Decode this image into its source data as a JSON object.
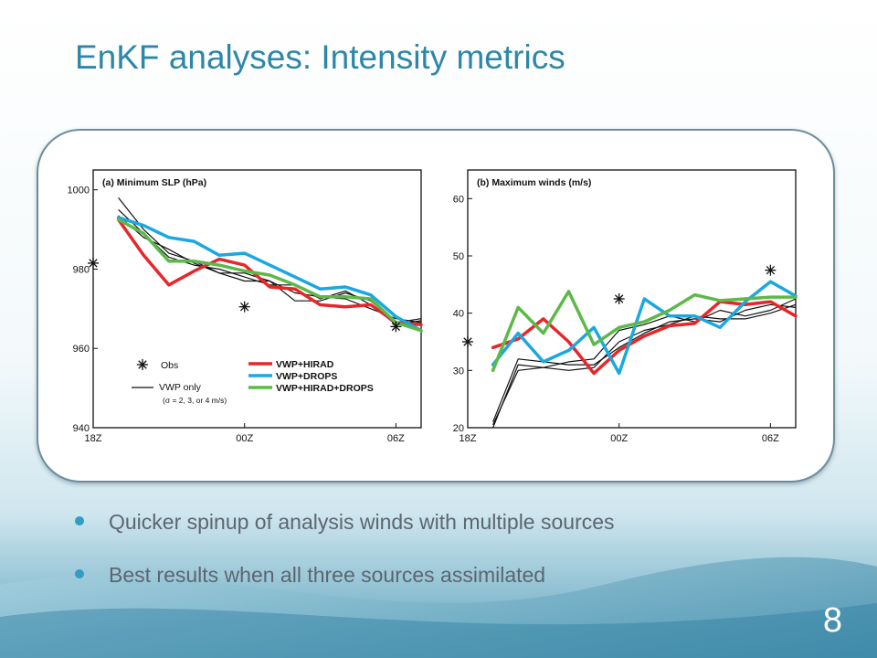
{
  "slide": {
    "title": "EnKF analyses: Intensity metrics",
    "bullets": [
      "Quicker spinup of analysis winds with multiple sources",
      "Best results when all three sources assimilated"
    ],
    "page_number": "8",
    "colors": {
      "title": "#2e87a8",
      "bullet": "#2f9dc4",
      "text": "#5b6670"
    }
  },
  "chart_data": [
    {
      "type": "line",
      "title": "(a) Minimum SLP (hPa)",
      "xlabel": "",
      "ylabel": "",
      "x_ticks": [
        {
          "x": 0,
          "label": "18Z"
        },
        {
          "x": 6,
          "label": "00Z"
        },
        {
          "x": 12,
          "label": "06Z"
        }
      ],
      "xlim": [
        0,
        13
      ],
      "ylim": [
        940,
        1005
      ],
      "y_ticks": [
        940,
        960,
        980,
        1000
      ],
      "legend": {
        "obs_label": "Obs",
        "vwp_label": "VWP only",
        "vwp_note": "(σ = 2, 3, or 4 m/s)",
        "position": "bottom"
      },
      "series": [
        {
          "name": "VWP+HIRAD",
          "color": "#e8262a",
          "width": 3.5,
          "x": [
            1,
            2,
            3,
            4,
            5,
            6,
            7,
            8,
            9,
            10,
            11,
            12,
            13
          ],
          "values": [
            992.5,
            983.5,
            976,
            979.5,
            982.5,
            981,
            975.5,
            975,
            971,
            970.5,
            971,
            966.5,
            966
          ]
        },
        {
          "name": "VWP+DROPS",
          "color": "#1ba8e0",
          "width": 3.5,
          "x": [
            1,
            2,
            3,
            4,
            5,
            6,
            7,
            8,
            9,
            10,
            11,
            12,
            13
          ],
          "values": [
            993,
            991,
            988,
            987,
            983.5,
            984,
            981,
            978,
            975,
            975.5,
            973.5,
            968,
            964.5
          ]
        },
        {
          "name": "VWP+HIRAD+DROPS",
          "color": "#5cb949",
          "width": 3.5,
          "x": [
            1,
            2,
            3,
            4,
            5,
            6,
            7,
            8,
            9,
            10,
            11,
            12,
            13
          ],
          "values": [
            992.5,
            989,
            982,
            982,
            981,
            979.5,
            978.5,
            976,
            973,
            973,
            972.5,
            966.5,
            964.5
          ]
        }
      ],
      "vwp_runs": [
        {
          "x": [
            1,
            2,
            3,
            4,
            5,
            6,
            7,
            8,
            9,
            10,
            11,
            12,
            13
          ],
          "values": [
            998,
            990,
            984,
            982,
            979,
            977,
            977,
            972,
            972,
            974,
            972,
            966.5,
            967.5
          ]
        },
        {
          "x": [
            1,
            2,
            3,
            4,
            5,
            6,
            7,
            8,
            9,
            10,
            11,
            12,
            13
          ],
          "values": [
            995,
            989,
            983,
            981,
            980,
            978,
            976,
            976,
            972.5,
            974.5,
            971,
            966,
            967
          ]
        },
        {
          "x": [
            1,
            2,
            3,
            4,
            5,
            6,
            7,
            8,
            9,
            10,
            11,
            12,
            13
          ],
          "values": [
            993.5,
            988,
            985,
            981.5,
            979,
            979,
            977,
            974,
            973,
            972.5,
            970,
            967.5,
            966.5
          ]
        }
      ],
      "obs": [
        {
          "x": 0,
          "y": 981.5
        },
        {
          "x": 6,
          "y": 970.5
        },
        {
          "x": 12,
          "y": 965.5
        }
      ]
    },
    {
      "type": "line",
      "title": "(b) Maximum winds (m/s)",
      "xlabel": "",
      "ylabel": "",
      "x_ticks": [
        {
          "x": 0,
          "label": "18Z"
        },
        {
          "x": 6,
          "label": "00Z"
        },
        {
          "x": 12,
          "label": "06Z"
        }
      ],
      "xlim": [
        0,
        13
      ],
      "ylim": [
        20,
        65
      ],
      "y_ticks": [
        20,
        30,
        40,
        50,
        60
      ],
      "series": [
        {
          "name": "VWP+HIRAD",
          "color": "#e8262a",
          "width": 3.5,
          "x": [
            1,
            2,
            3,
            4,
            5,
            6,
            7,
            8,
            9,
            10,
            11,
            12,
            13
          ],
          "values": [
            34,
            35.5,
            39,
            35,
            29.5,
            33.5,
            36,
            37.8,
            38.2,
            42,
            41.5,
            42,
            39.5
          ]
        },
        {
          "name": "VWP+DROPS",
          "color": "#1ba8e0",
          "width": 3.5,
          "x": [
            1,
            2,
            3,
            4,
            5,
            6,
            7,
            8,
            9,
            10,
            11,
            12,
            13
          ],
          "values": [
            31,
            36.5,
            31.5,
            33.5,
            37.5,
            29.5,
            42.5,
            39.5,
            39.5,
            37.5,
            42,
            45.5,
            43
          ]
        },
        {
          "name": "VWP+HIRAD+DROPS",
          "color": "#5cb949",
          "width": 3.5,
          "x": [
            1,
            2,
            3,
            4,
            5,
            6,
            7,
            8,
            9,
            10,
            11,
            12,
            13
          ],
          "values": [
            30,
            41,
            36.5,
            43.8,
            34.5,
            37.5,
            38.5,
            40.5,
            43.2,
            42.2,
            42.5,
            42.8,
            42.8
          ]
        }
      ],
      "vwp_runs": [
        {
          "x": [
            1,
            2,
            3,
            4,
            5,
            6,
            7,
            8,
            9,
            10,
            11,
            12,
            13
          ],
          "values": [
            20,
            31,
            30.5,
            31.5,
            32,
            37,
            38,
            39.5,
            38.5,
            40.5,
            39.5,
            40.5,
            42.5
          ]
        },
        {
          "x": [
            1,
            2,
            3,
            4,
            5,
            6,
            7,
            8,
            9,
            10,
            11,
            12,
            13
          ],
          "values": [
            20.5,
            30,
            30.5,
            30,
            30.5,
            35,
            37,
            38,
            39.5,
            39,
            39,
            40,
            41.5
          ]
        },
        {
          "x": [
            1,
            2,
            3,
            4,
            5,
            6,
            7,
            8,
            9,
            10,
            11,
            12,
            13
          ],
          "values": [
            21,
            32,
            31.5,
            31,
            31,
            34,
            36.5,
            38.5,
            39,
            38.5,
            40.5,
            41.5,
            41
          ]
        }
      ],
      "obs": [
        {
          "x": 0,
          "y": 35
        },
        {
          "x": 6,
          "y": 42.5
        },
        {
          "x": 12,
          "y": 47.5
        }
      ]
    }
  ]
}
